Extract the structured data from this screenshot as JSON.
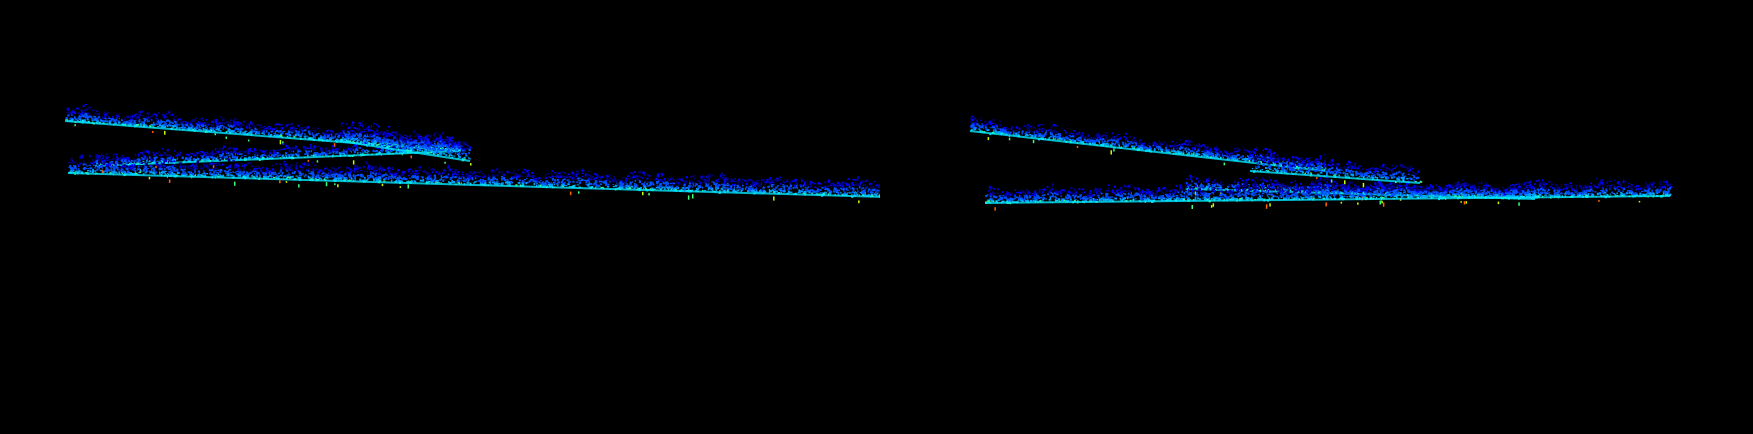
{
  "scene": {
    "background_color": "#000000",
    "colormap": [
      "#00007a",
      "#0000ff",
      "#0050ff",
      "#00a0ff",
      "#00e6ff",
      "#3cff78",
      "#c8ff00",
      "#ff6400"
    ],
    "panels": [
      {
        "name": "left-point-cloud-view",
        "strands": 3
      },
      {
        "name": "right-point-cloud-view",
        "strands": 3
      }
    ]
  }
}
